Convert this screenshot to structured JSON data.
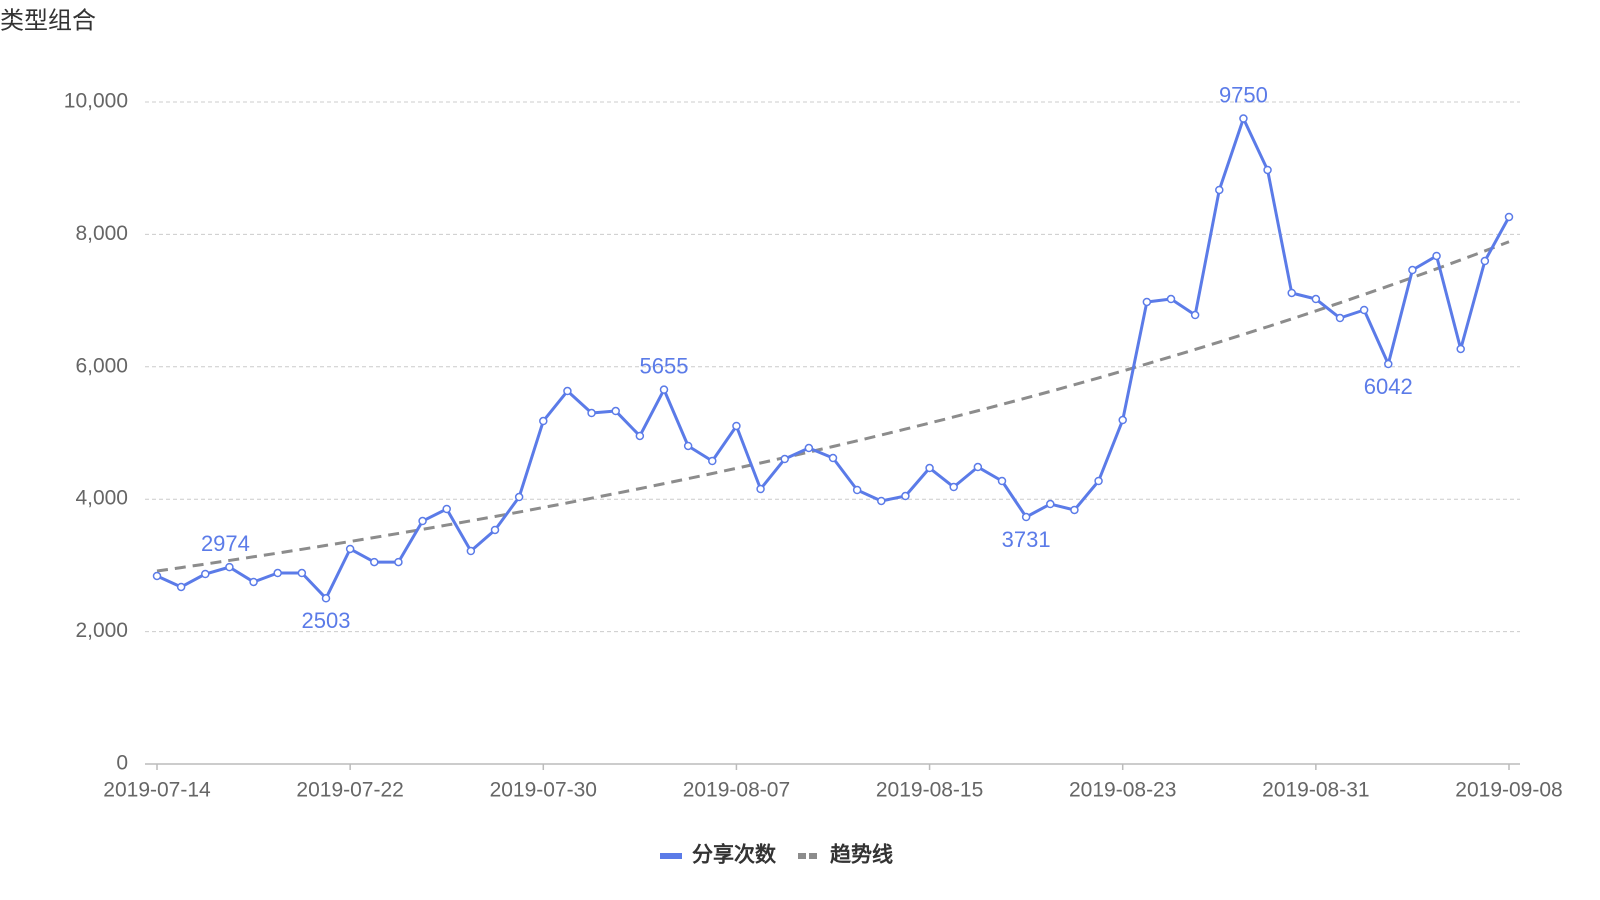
{
  "chart_data": {
    "type": "line",
    "title": "类型组合",
    "categories": [
      "2019-07-14",
      null,
      null,
      null,
      null,
      null,
      null,
      null,
      "2019-07-22",
      null,
      null,
      null,
      null,
      null,
      null,
      null,
      "2019-07-30",
      null,
      null,
      null,
      null,
      null,
      null,
      null,
      "2019-08-07",
      null,
      null,
      null,
      null,
      null,
      null,
      null,
      "2019-08-15",
      null,
      null,
      null,
      null,
      null,
      null,
      null,
      "2019-08-23",
      null,
      null,
      null,
      null,
      null,
      null,
      null,
      "2019-08-31",
      null,
      null,
      null,
      null,
      null,
      null,
      null,
      "2019-09-08"
    ],
    "series": [
      {
        "name": "分享次数",
        "color": "#5b7be8",
        "values": [
          2840,
          2674,
          2870,
          2974,
          2750,
          2885,
          2885,
          2503,
          3248,
          3050,
          3050,
          3670,
          3852,
          3217,
          3535,
          4033,
          5181,
          5634,
          5302,
          5332,
          4955,
          5655,
          4804,
          4577,
          5106,
          4154,
          4607,
          4773,
          4622,
          4139,
          3973,
          4048,
          4471,
          4184,
          4486,
          4275,
          3731,
          3927,
          3837,
          4275,
          5196,
          6979,
          7024,
          6782,
          8671,
          9750,
          8973,
          7115,
          7024,
          6737,
          6858,
          6042,
          7462,
          7674,
          6269,
          7598,
          8263
        ],
        "value_labels": [
          null,
          null,
          null,
          "2974",
          null,
          null,
          null,
          "2503",
          null,
          null,
          null,
          null,
          null,
          null,
          null,
          null,
          null,
          null,
          null,
          null,
          null,
          "5655",
          null,
          null,
          null,
          null,
          null,
          null,
          null,
          null,
          null,
          null,
          null,
          null,
          null,
          null,
          "3731",
          null,
          null,
          null,
          null,
          null,
          null,
          null,
          null,
          "9750",
          null,
          null,
          null,
          null,
          null,
          "6042",
          null,
          null,
          null,
          null,
          null
        ]
      },
      {
        "name": "趋势线",
        "color": "#8c8c8c",
        "dashed": true,
        "values": [
          2915,
          2967,
          3020,
          3075,
          3130,
          3186,
          3243,
          3302,
          3361,
          3421,
          3483,
          3545,
          3609,
          3674,
          3739,
          3806,
          3875,
          3944,
          4015,
          4087,
          4160,
          4235,
          4311,
          4388,
          4467,
          4547,
          4629,
          4712,
          4796,
          4882,
          4970,
          5059,
          5150,
          5242,
          5336,
          5432,
          5529,
          5628,
          5729,
          5832,
          5937,
          6043,
          6152,
          6262,
          6374,
          6489,
          6605,
          6723,
          6844,
          6967,
          7092,
          7219,
          7348,
          7480,
          7614,
          7750,
          7889
        ]
      }
    ],
    "ylim": [
      0,
      10000
    ],
    "yticks": [
      0,
      {
        "value": 2000,
        "label": "2,000"
      },
      {
        "value": 4000,
        "label": "4,000"
      },
      {
        "value": 6000,
        "label": "6,000"
      },
      {
        "value": 8000,
        "label": "8,000"
      },
      {
        "value": 10000,
        "label": "10,000"
      }
    ],
    "grid": true,
    "legend": "bottom"
  }
}
